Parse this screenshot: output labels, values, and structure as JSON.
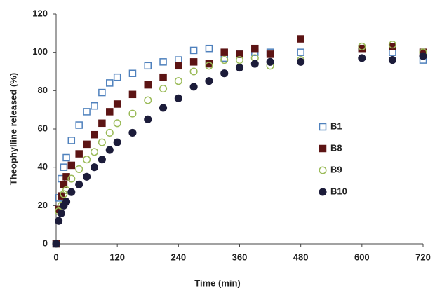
{
  "chart_data": {
    "type": "scatter",
    "xlabel": "Time (min)",
    "ylabel": "Theophylline released (%)",
    "x": [
      0,
      5,
      10,
      15,
      20,
      30,
      45,
      60,
      75,
      90,
      105,
      120,
      150,
      180,
      210,
      240,
      270,
      300,
      330,
      360,
      390,
      420,
      480,
      600,
      660,
      720
    ],
    "series": [
      {
        "name": "B1",
        "color": "#4f81bd",
        "marker": "square",
        "filled": false,
        "values": [
          0,
          24,
          34,
          40,
          45,
          54,
          62,
          69,
          72,
          79,
          84,
          87,
          89,
          93,
          95,
          96,
          101,
          102,
          97,
          99,
          100,
          100,
          100,
          102,
          100,
          96
        ]
      },
      {
        "name": "B8",
        "color": "#5c1414",
        "marker": "square",
        "filled": true,
        "values": [
          0,
          18,
          25,
          31,
          35,
          41,
          47,
          52,
          57,
          63,
          69,
          73,
          78,
          83,
          87,
          93,
          95,
          94,
          100,
          99,
          102,
          99,
          107,
          102,
          103,
          100
        ]
      },
      {
        "name": "B9",
        "color": "#9bbb59",
        "marker": "circle",
        "filled": false,
        "values": [
          0,
          17,
          20,
          26,
          28,
          34,
          39,
          44,
          48,
          53,
          58,
          63,
          68,
          75,
          81,
          85,
          90,
          93,
          96,
          96,
          97,
          93,
          96,
          103,
          104,
          100
        ]
      },
      {
        "name": "B10",
        "color": "#1c1c3a",
        "marker": "circle",
        "filled": true,
        "values": [
          0,
          12,
          16,
          20,
          22,
          27,
          31,
          35,
          40,
          44,
          49,
          53,
          58,
          65,
          71,
          76,
          82,
          85,
          89,
          92,
          94,
          95,
          95,
          97,
          96,
          98
        ]
      }
    ],
    "xlim": [
      0,
      720
    ],
    "xticks": [
      0,
      120,
      240,
      360,
      480,
      600,
      720
    ],
    "ylim": [
      0,
      120
    ],
    "yticks": [
      0,
      20,
      40,
      60,
      80,
      100,
      120
    ],
    "grid": false,
    "legend": "right"
  }
}
